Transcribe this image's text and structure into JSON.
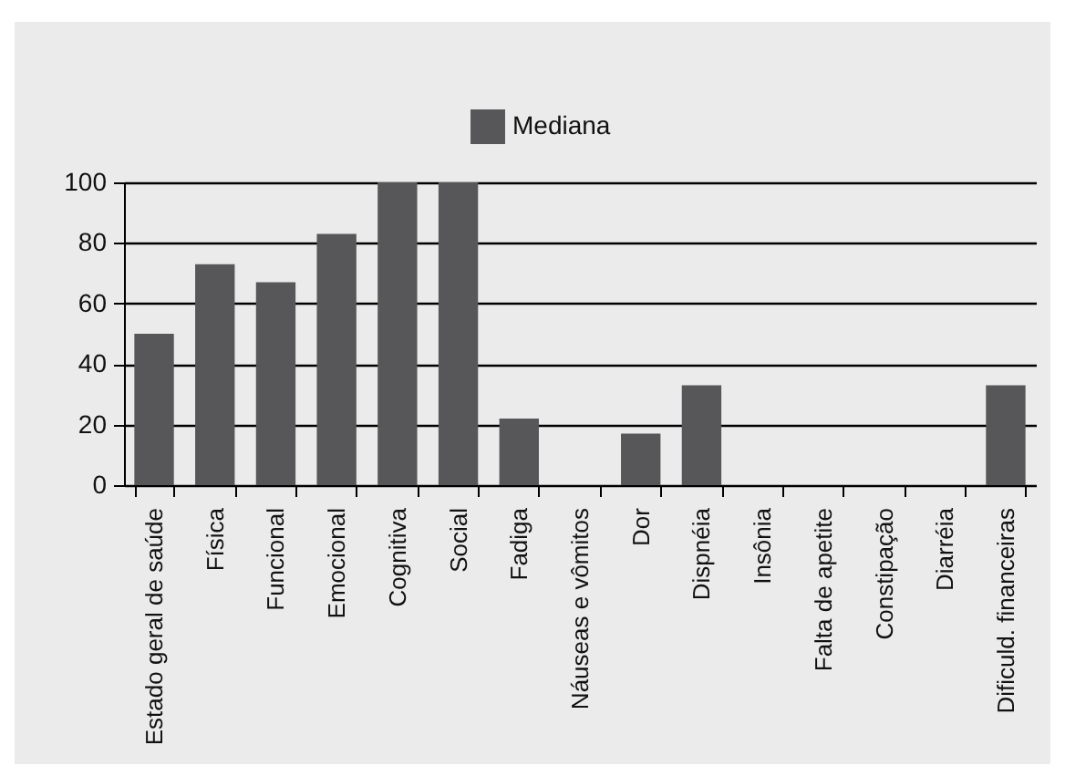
{
  "chart_data": {
    "type": "bar",
    "categories": [
      "Estado geral de saúde",
      "Física",
      "Funcional",
      "Emocional",
      "Cognitiva",
      "Social",
      "Fadiga",
      "Náuseas e vômitos",
      "Dor",
      "Dispnéia",
      "Insônia",
      "Falta de apetite",
      "Constipação",
      "Diarréia",
      "Dificuld. financeiras"
    ],
    "series": [
      {
        "name": "Mediana",
        "color": "#575759",
        "values": [
          50,
          73,
          67,
          83,
          100,
          100,
          22,
          0,
          17,
          33,
          0,
          0,
          0,
          0,
          33
        ]
      }
    ],
    "ylim": [
      0,
      100
    ],
    "yticks": [
      0,
      20,
      40,
      60,
      80,
      100
    ],
    "grid": "y",
    "legend": "top"
  }
}
